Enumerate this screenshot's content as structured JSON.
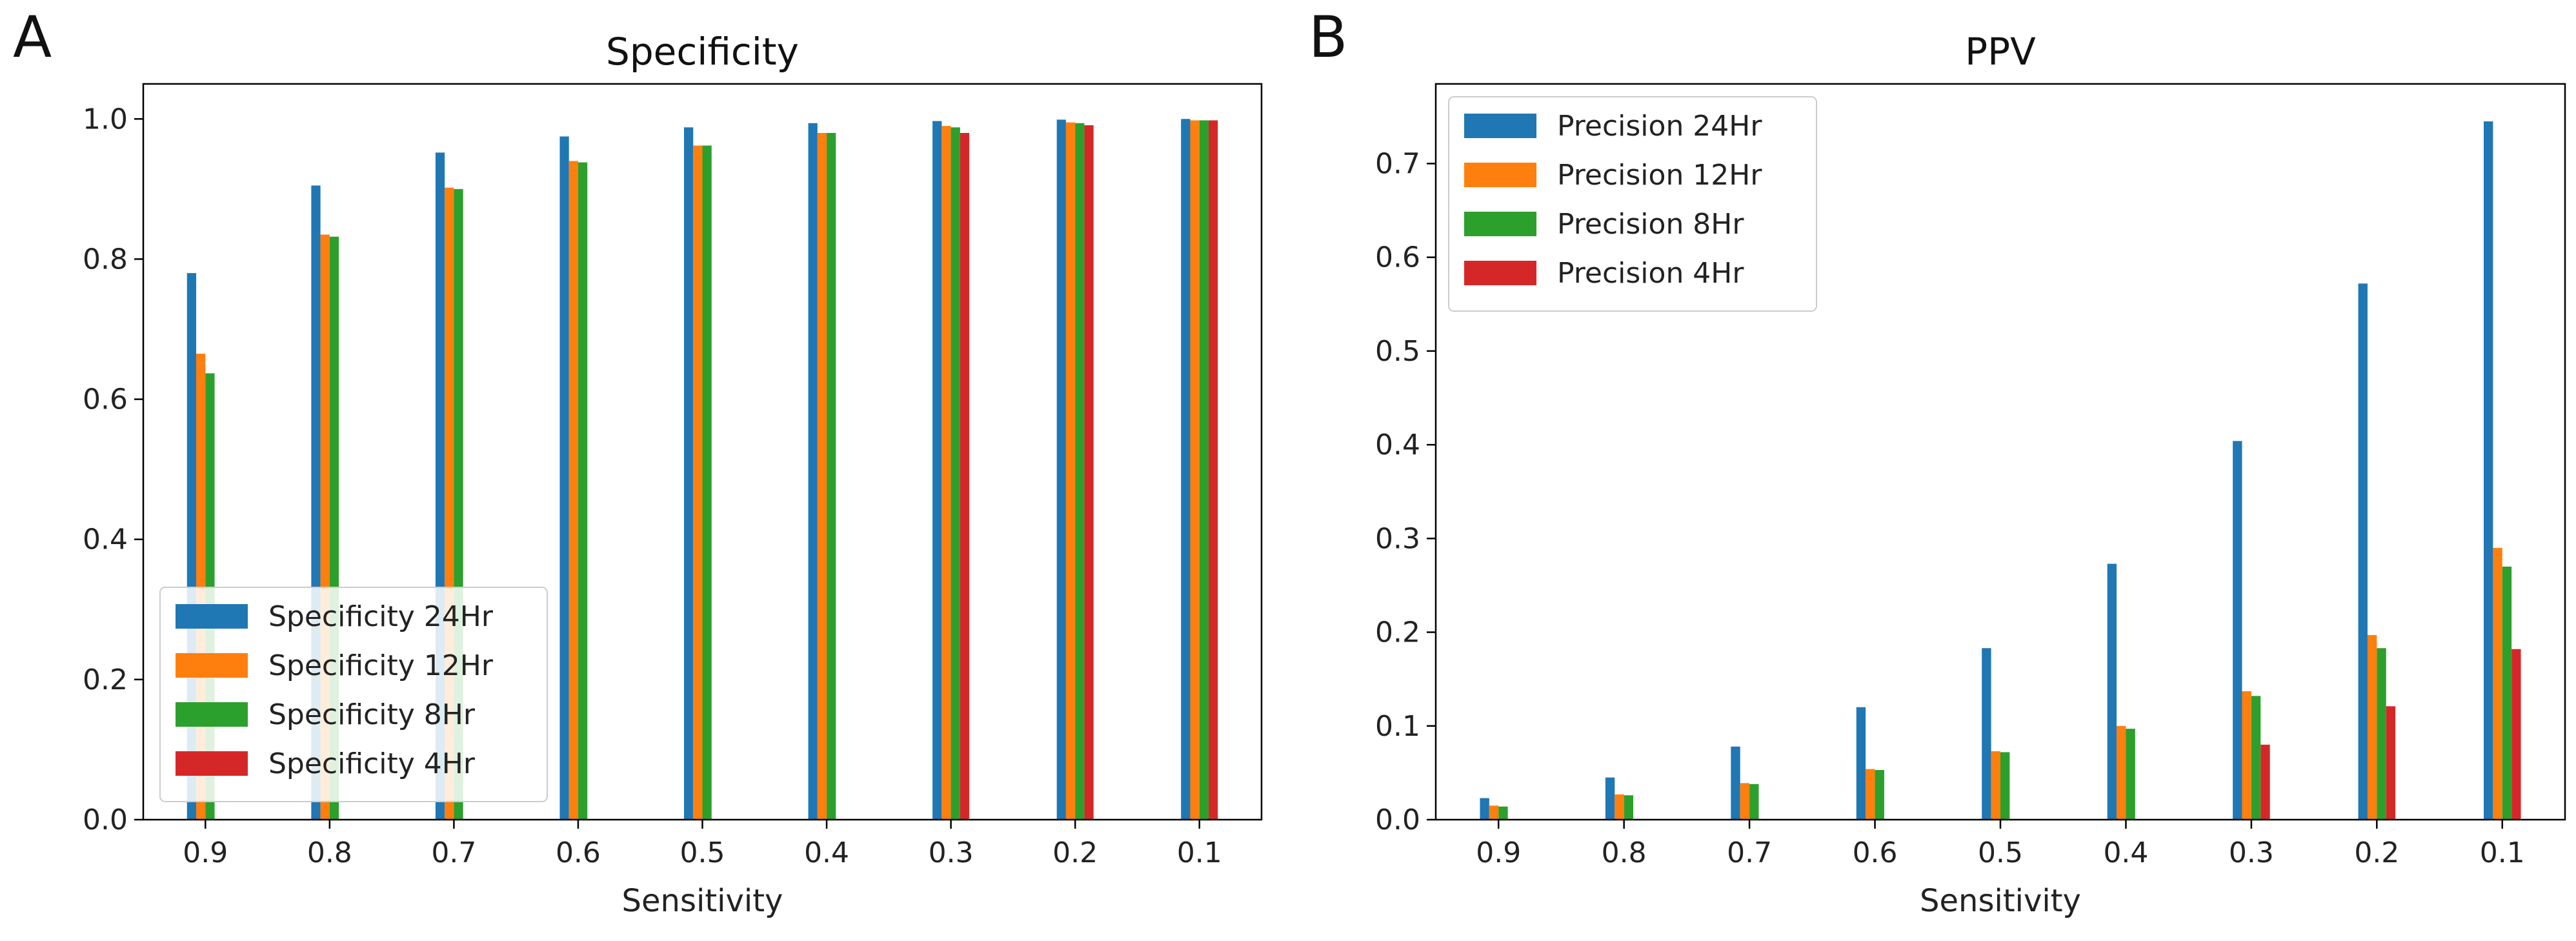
{
  "chart_data": [
    {
      "panel_label": "A",
      "type": "bar",
      "title": "Specificity",
      "xlabel": "Sensitivity",
      "ylabel": "",
      "ylim": [
        0,
        1.05
      ],
      "yticks": [
        "0.0",
        "0.2",
        "0.4",
        "0.6",
        "0.8",
        "1.0"
      ],
      "categories": [
        "0.9",
        "0.8",
        "0.7",
        "0.6",
        "0.5",
        "0.4",
        "0.3",
        "0.2",
        "0.1"
      ],
      "legend_position": "lower-left",
      "series": [
        {
          "name": "Specificity 24Hr",
          "color": "#1f77b4",
          "values": [
            0.78,
            0.905,
            0.952,
            0.975,
            0.988,
            0.994,
            0.997,
            0.999,
            1.0
          ]
        },
        {
          "name": "Specificity 12Hr",
          "color": "#ff7f0e",
          "values": [
            0.665,
            0.835,
            0.902,
            0.94,
            0.962,
            0.98,
            0.99,
            0.995,
            0.998
          ]
        },
        {
          "name": "Specificity 8Hr",
          "color": "#2ca02c",
          "values": [
            0.637,
            0.832,
            0.9,
            0.938,
            0.962,
            0.98,
            0.988,
            0.994,
            0.998
          ]
        },
        {
          "name": "Specificity 4Hr",
          "color": "#d62728",
          "values": [
            null,
            null,
            null,
            null,
            null,
            null,
            0.98,
            0.991,
            0.998
          ]
        }
      ]
    },
    {
      "panel_label": "B",
      "type": "bar",
      "title": "PPV",
      "xlabel": "Sensitivity",
      "ylabel": "",
      "ylim": [
        0,
        0.785
      ],
      "yticks": [
        "0.0",
        "0.1",
        "0.2",
        "0.3",
        "0.4",
        "0.5",
        "0.6",
        "0.7"
      ],
      "categories": [
        "0.9",
        "0.8",
        "0.7",
        "0.6",
        "0.5",
        "0.4",
        "0.3",
        "0.2",
        "0.1"
      ],
      "legend_position": "top-left",
      "series": [
        {
          "name": "Precision 24Hr",
          "color": "#1f77b4",
          "values": [
            0.023,
            0.045,
            0.078,
            0.12,
            0.183,
            0.273,
            0.404,
            0.572,
            0.745
          ]
        },
        {
          "name": "Precision 12Hr",
          "color": "#ff7f0e",
          "values": [
            0.015,
            0.027,
            0.039,
            0.054,
            0.073,
            0.1,
            0.137,
            0.197,
            0.29
          ]
        },
        {
          "name": "Precision 8Hr",
          "color": "#2ca02c",
          "values": [
            0.014,
            0.026,
            0.038,
            0.053,
            0.072,
            0.097,
            0.132,
            0.183,
            0.27
          ]
        },
        {
          "name": "Precision 4Hr",
          "color": "#d62728",
          "values": [
            null,
            null,
            null,
            null,
            null,
            null,
            0.08,
            0.121,
            0.182
          ]
        }
      ]
    }
  ]
}
